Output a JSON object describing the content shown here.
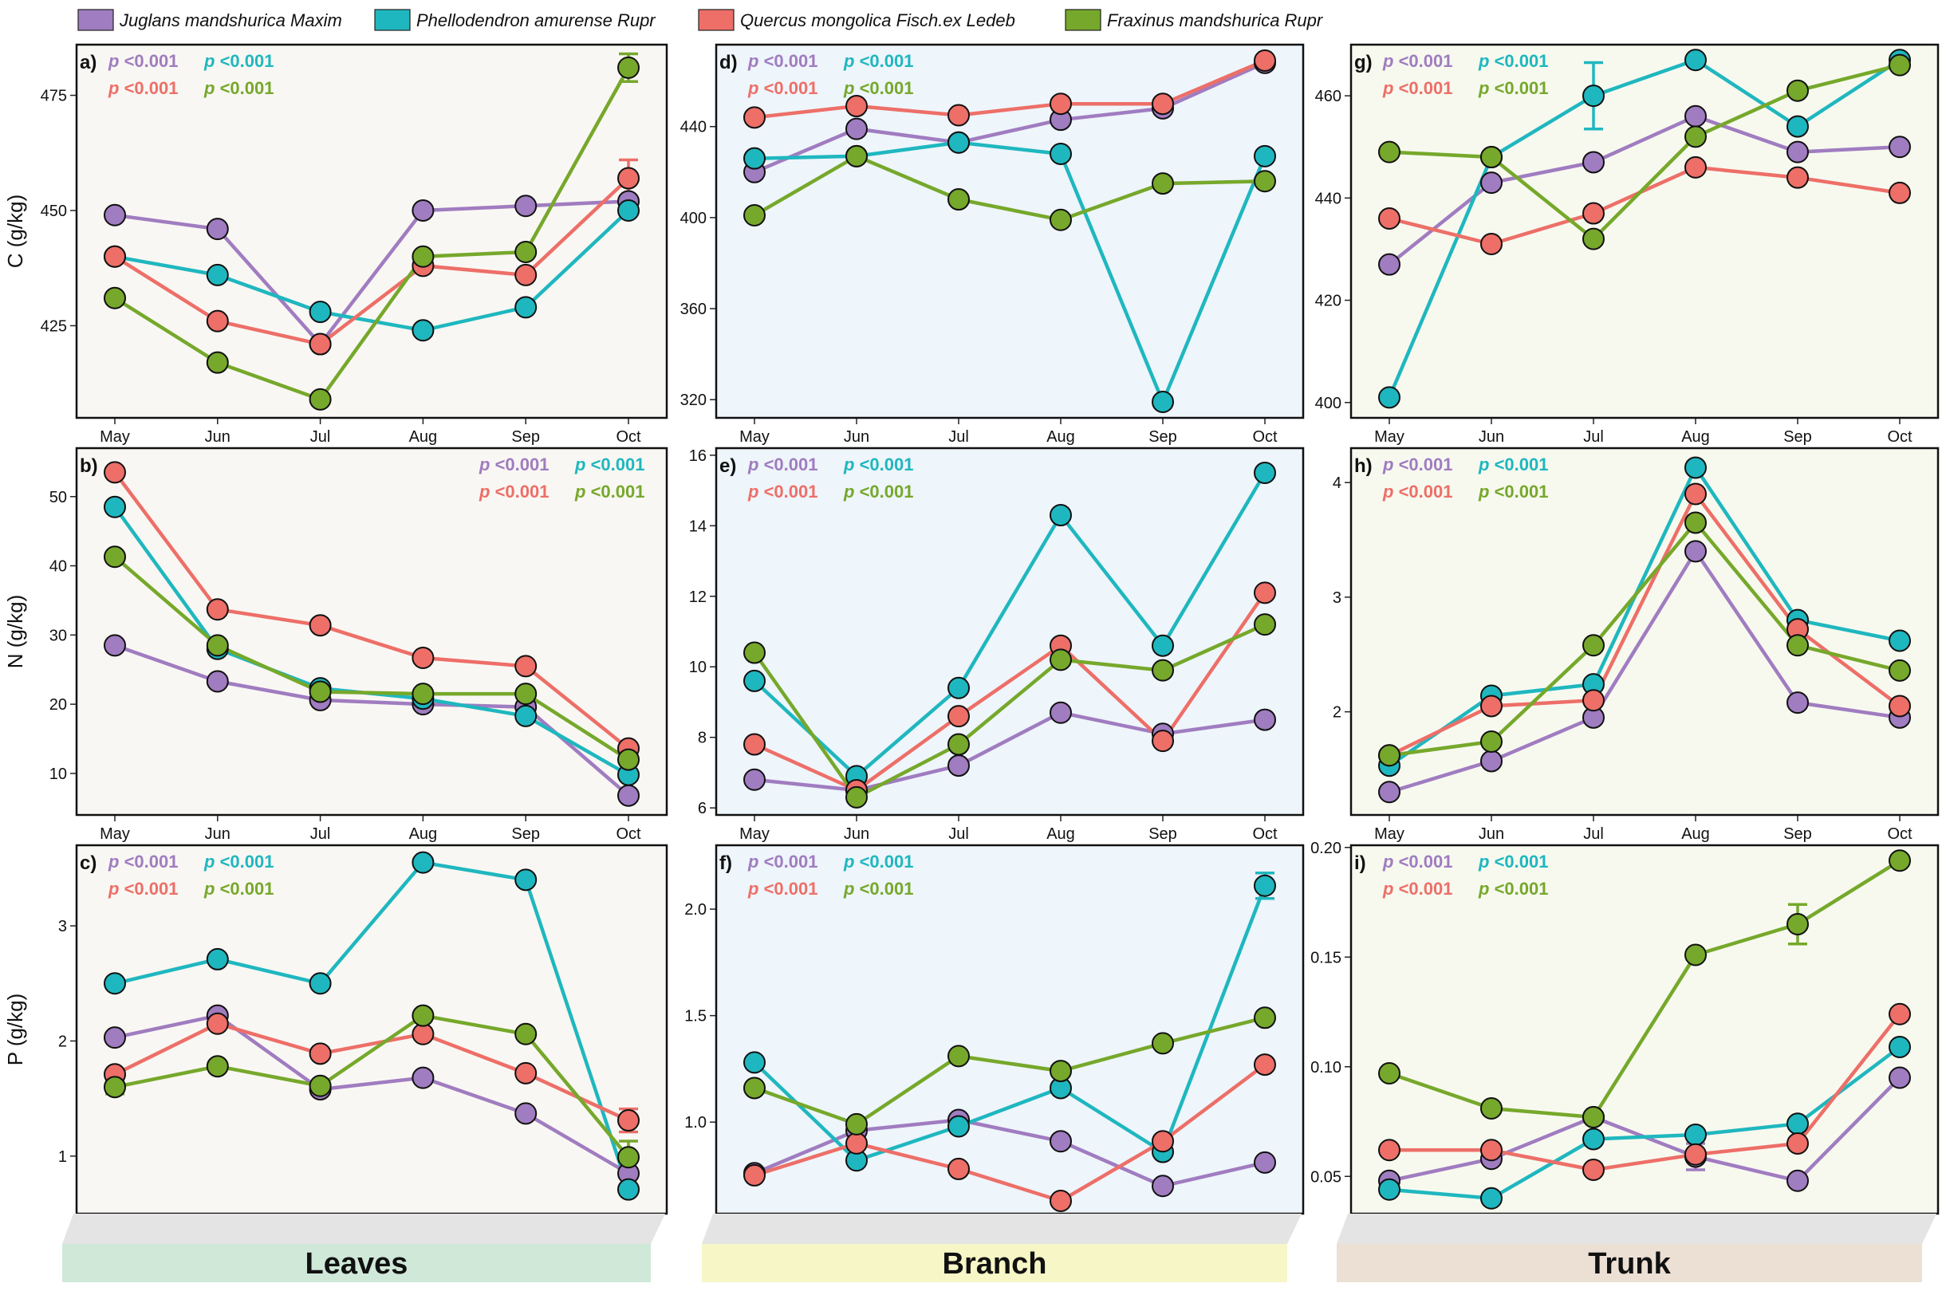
{
  "figure": {
    "legend": [
      {
        "name": "Juglans mandshurica Maxim",
        "color": "#a07cc0"
      },
      {
        "name": "Phellodendron amurense Rupr",
        "color": "#1fb7bf"
      },
      {
        "name": "Quercus mongolica Fisch.ex Ledeb",
        "color": "#ed6f68"
      },
      {
        "name": "Fraxinus mandshurica Rupr",
        "color": "#76a82b"
      }
    ],
    "columns": [
      {
        "label": "Leaves",
        "band_color": "#cfe8d8",
        "plot_bg": "#f9f7f3"
      },
      {
        "label": "Branch",
        "band_color": "#f6f6c6",
        "plot_bg": "#eef5fb"
      },
      {
        "label": "Trunk",
        "band_color": "#ecdfd4",
        "plot_bg": "#f7f9ef"
      }
    ],
    "row_ylabels": [
      "C (g/kg)",
      "N (g/kg)",
      "P (g/kg)"
    ],
    "p_label": "p",
    "p_value": "<0.001"
  },
  "chart_data": [
    {
      "id": "a)",
      "type": "line",
      "title": "a)",
      "xlabel": "",
      "ylabel": "C (g/kg)",
      "categories": [
        "May",
        "Jun",
        "Jul",
        "Aug",
        "Sep",
        "Oct"
      ],
      "ylim": [
        405,
        486
      ],
      "yticks": [
        425,
        450,
        475
      ],
      "series": [
        {
          "name": "Juglans mandshurica Maxim",
          "values": [
            449,
            446,
            421,
            450,
            451,
            452
          ]
        },
        {
          "name": "Phellodendron amurense Rupr",
          "values": [
            440,
            436,
            428,
            424,
            429,
            450
          ]
        },
        {
          "name": "Quercus mongolica Fisch.ex Ledeb",
          "values": [
            440,
            426,
            421,
            438,
            436,
            457
          ],
          "errors": [
            0,
            0,
            0,
            0,
            0,
            4
          ]
        },
        {
          "name": "Fraxinus mandshurica Rupr",
          "values": [
            431,
            417,
            409,
            440,
            441,
            481
          ],
          "errors": [
            0,
            0,
            0,
            0,
            0,
            3
          ]
        }
      ],
      "pvalues": [
        "<0.001",
        "<0.001",
        "<0.001",
        "<0.001"
      ],
      "p_position": "top-left"
    },
    {
      "id": "d)",
      "type": "line",
      "title": "d)",
      "xlabel": "",
      "ylabel": "",
      "categories": [
        "May",
        "Jun",
        "Jul",
        "Aug",
        "Sep",
        "Oct"
      ],
      "ylim": [
        312,
        476
      ],
      "yticks": [
        320,
        360,
        400,
        440
      ],
      "series": [
        {
          "name": "Juglans mandshurica Maxim",
          "values": [
            420,
            439,
            433,
            443,
            448,
            468
          ]
        },
        {
          "name": "Phellodendron amurense Rupr",
          "values": [
            426,
            427,
            433,
            428,
            319,
            427
          ]
        },
        {
          "name": "Quercus mongolica Fisch.ex Ledeb",
          "values": [
            444,
            449,
            445,
            450,
            450,
            469
          ]
        },
        {
          "name": "Fraxinus mandshurica Rupr",
          "values": [
            401,
            427,
            408,
            399,
            415,
            416
          ]
        }
      ],
      "pvalues": [
        "<0.001",
        "<0.001",
        "<0.001",
        "<0.001"
      ],
      "p_position": "top-left"
    },
    {
      "id": "g)",
      "type": "line",
      "title": "g)",
      "xlabel": "",
      "ylabel": "",
      "categories": [
        "May",
        "Jun",
        "Jul",
        "Aug",
        "Sep",
        "Oct"
      ],
      "ylim": [
        397,
        470
      ],
      "yticks": [
        400,
        420,
        440,
        460
      ],
      "series": [
        {
          "name": "Juglans mandshurica Maxim",
          "values": [
            427,
            443,
            447,
            456,
            449,
            450
          ]
        },
        {
          "name": "Phellodendron amurense Rupr",
          "values": [
            401,
            448,
            460,
            467,
            454,
            467
          ],
          "errors": [
            0,
            0,
            6.5,
            0,
            0,
            0
          ]
        },
        {
          "name": "Quercus mongolica Fisch.ex Ledeb",
          "values": [
            436,
            431,
            437,
            446,
            444,
            441
          ]
        },
        {
          "name": "Fraxinus mandshurica Rupr",
          "values": [
            449,
            448,
            432,
            452,
            461,
            466
          ]
        }
      ],
      "pvalues": [
        "<0.001",
        "<0.001",
        "<0.001",
        "<0.001"
      ],
      "p_position": "top-left"
    },
    {
      "id": "b)",
      "type": "line",
      "title": "b)",
      "xlabel": "",
      "ylabel": "N (g/kg)",
      "categories": [
        "May",
        "Jun",
        "Jul",
        "Aug",
        "Sep",
        "Oct"
      ],
      "ylim": [
        4,
        57
      ],
      "yticks": [
        10,
        20,
        30,
        40,
        50
      ],
      "series": [
        {
          "name": "Juglans mandshurica Maxim",
          "values": [
            28.5,
            23.3,
            20.6,
            20,
            19.6,
            6.8
          ]
        },
        {
          "name": "Phellodendron amurense Rupr",
          "values": [
            48.5,
            28,
            22.3,
            20.8,
            18.3,
            9.8
          ]
        },
        {
          "name": "Quercus mongolica Fisch.ex Ledeb",
          "values": [
            53.5,
            33.7,
            31.4,
            26.7,
            25.5,
            13.6
          ]
        },
        {
          "name": "Fraxinus mandshurica Rupr",
          "values": [
            41.3,
            28.5,
            21.8,
            21.5,
            21.5,
            12
          ]
        }
      ],
      "pvalues": [
        "<0.001",
        "<0.001",
        "<0.001",
        "<0.001"
      ],
      "p_position": "top-right"
    },
    {
      "id": "e)",
      "type": "line",
      "title": "e)",
      "xlabel": "",
      "ylabel": "",
      "categories": [
        "May",
        "Jun",
        "Jul",
        "Aug",
        "Sep",
        "Oct"
      ],
      "ylim": [
        5.8,
        16.2
      ],
      "yticks": [
        6,
        8,
        10,
        12,
        14,
        16
      ],
      "series": [
        {
          "name": "Juglans mandshurica Maxim",
          "values": [
            6.8,
            6.5,
            7.2,
            8.7,
            8.1,
            8.5
          ]
        },
        {
          "name": "Phellodendron amurense Rupr",
          "values": [
            9.6,
            6.9,
            9.4,
            14.3,
            10.6,
            15.5
          ]
        },
        {
          "name": "Quercus mongolica Fisch.ex Ledeb",
          "values": [
            7.8,
            6.5,
            8.6,
            10.6,
            7.9,
            12.1
          ]
        },
        {
          "name": "Fraxinus mandshurica Rupr",
          "values": [
            10.4,
            6.3,
            7.8,
            10.2,
            9.9,
            11.2
          ]
        }
      ],
      "pvalues": [
        "<0.001",
        "<0.001",
        "<0.001",
        "<0.001"
      ],
      "p_position": "top-left"
    },
    {
      "id": "h)",
      "type": "line",
      "title": "h)",
      "xlabel": "",
      "ylabel": "",
      "categories": [
        "May",
        "Jun",
        "Jul",
        "Aug",
        "Sep",
        "Oct"
      ],
      "ylim": [
        1.1,
        4.3
      ],
      "yticks": [
        2,
        3,
        4
      ],
      "series": [
        {
          "name": "Juglans mandshurica Maxim",
          "values": [
            1.3,
            1.57,
            1.95,
            3.4,
            2.08,
            1.95
          ]
        },
        {
          "name": "Phellodendron amurense Rupr",
          "values": [
            1.53,
            2.14,
            2.24,
            4.13,
            2.8,
            2.62
          ]
        },
        {
          "name": "Quercus mongolica Fisch.ex Ledeb",
          "values": [
            1.62,
            2.05,
            2.1,
            3.9,
            2.72,
            2.05
          ]
        },
        {
          "name": "Fraxinus mandshurica Rupr",
          "values": [
            1.62,
            1.74,
            2.58,
            3.65,
            2.58,
            2.36
          ]
        }
      ],
      "pvalues": [
        "<0.001",
        "<0.001",
        "<0.001",
        "<0.001"
      ],
      "p_position": "top-left"
    },
    {
      "id": "c)",
      "type": "line",
      "title": "c)",
      "xlabel": "",
      "ylabel": "P (g/kg)",
      "categories": [
        "May",
        "Jun",
        "Jul",
        "Aug",
        "Sep",
        "Oct"
      ],
      "ylim": [
        0.5,
        3.7
      ],
      "yticks": [
        1,
        2,
        3
      ],
      "series": [
        {
          "name": "Juglans mandshurica Maxim",
          "values": [
            2.03,
            2.22,
            1.58,
            1.68,
            1.37,
            0.85
          ]
        },
        {
          "name": "Phellodendron amurense Rupr",
          "values": [
            2.5,
            2.71,
            2.5,
            3.55,
            3.4,
            0.71
          ]
        },
        {
          "name": "Quercus mongolica Fisch.ex Ledeb",
          "values": [
            1.71,
            2.15,
            1.89,
            2.06,
            1.72,
            1.31
          ],
          "errors": [
            0,
            0,
            0,
            0,
            0,
            0.1
          ]
        },
        {
          "name": "Fraxinus mandshurica Rupr",
          "values": [
            1.6,
            1.78,
            1.61,
            2.22,
            2.06,
            0.99
          ],
          "errors": [
            0.06,
            0,
            0,
            0,
            0,
            0.14
          ]
        }
      ],
      "pvalues": [
        "<0.001",
        "<0.001",
        "<0.001",
        "<0.001"
      ],
      "p_position": "top-left"
    },
    {
      "id": "f)",
      "type": "line",
      "title": "f)",
      "xlabel": "",
      "ylabel": "",
      "categories": [
        "May",
        "Jun",
        "Jul",
        "Aug",
        "Sep",
        "Oct"
      ],
      "ylim": [
        0.57,
        2.3
      ],
      "yticks": [
        1.0,
        1.5,
        2.0
      ],
      "ytick_format": "fixed1",
      "series": [
        {
          "name": "Juglans mandshurica Maxim",
          "values": [
            0.76,
            0.96,
            1.01,
            0.91,
            0.7,
            0.81
          ]
        },
        {
          "name": "Phellodendron amurense Rupr",
          "values": [
            1.28,
            0.82,
            0.98,
            1.16,
            0.86,
            2.11
          ],
          "errors": [
            0,
            0,
            0,
            0,
            0,
            0.06
          ]
        },
        {
          "name": "Quercus mongolica Fisch.ex Ledeb",
          "values": [
            0.75,
            0.9,
            0.78,
            0.63,
            0.91,
            1.27
          ]
        },
        {
          "name": "Fraxinus mandshurica Rupr",
          "values": [
            1.16,
            0.99,
            1.31,
            1.24,
            1.37,
            1.49
          ]
        }
      ],
      "pvalues": [
        "<0.001",
        "<0.001",
        "<0.001",
        "<0.001"
      ],
      "p_position": "top-left"
    },
    {
      "id": "i)",
      "type": "line",
      "title": "i)",
      "xlabel": "",
      "ylabel": "",
      "categories": [
        "May",
        "Jun",
        "Jul",
        "Aug",
        "Sep",
        "Oct"
      ],
      "ylim": [
        0.033,
        0.201
      ],
      "yticks": [
        0.05,
        0.1,
        0.15,
        0.2
      ],
      "ytick_format": "fixed2",
      "series": [
        {
          "name": "Juglans mandshurica Maxim",
          "values": [
            0.048,
            0.058,
            0.077,
            0.059,
            0.048,
            0.095
          ],
          "errors": [
            0,
            0,
            0,
            0.006,
            0,
            0
          ]
        },
        {
          "name": "Phellodendron amurense Rupr",
          "values": [
            0.044,
            0.04,
            0.067,
            0.069,
            0.074,
            0.109
          ]
        },
        {
          "name": "Quercus mongolica Fisch.ex Ledeb",
          "values": [
            0.062,
            0.062,
            0.053,
            0.06,
            0.065,
            0.124
          ]
        },
        {
          "name": "Fraxinus mandshurica Rupr",
          "values": [
            0.097,
            0.081,
            0.077,
            0.151,
            0.165,
            0.194
          ],
          "errors": [
            0,
            0,
            0,
            0,
            0.009,
            0
          ]
        }
      ],
      "pvalues": [
        "<0.001",
        "<0.001",
        "<0.001",
        "<0.001"
      ],
      "p_position": "top-left"
    }
  ]
}
